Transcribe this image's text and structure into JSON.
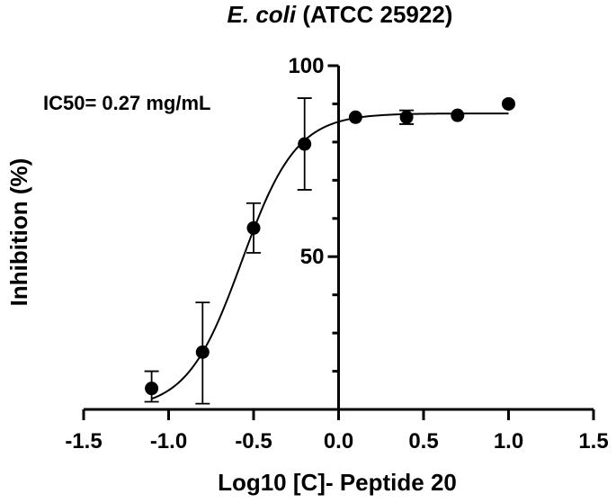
{
  "chart_data": {
    "type": "scatter",
    "title_italic": "E. coli",
    "title_rest": " (ATCC 25922)",
    "xlabel": "Log10 [C]- Peptide 20",
    "ylabel": "Inhibition (%)",
    "annotation": "IC50= 0.27 mg/mL",
    "xlim": [
      -1.5,
      1.5
    ],
    "ylim": [
      10,
      100
    ],
    "x_ticks": [
      "-1.5",
      "-1.0",
      "-0.5",
      "0.0",
      "0.5",
      "1.0",
      "1.5"
    ],
    "x_tick_values": [
      -1.5,
      -1.0,
      -0.5,
      0.0,
      0.5,
      1.0,
      1.5
    ],
    "y_ticks": [
      "50",
      "100"
    ],
    "y_tick_values": [
      50,
      100
    ],
    "y_minor_tick_values": [
      10,
      20,
      30,
      40,
      60,
      70,
      80,
      90
    ],
    "grid": false,
    "series": [
      {
        "x": [
          -1.1,
          -0.8,
          -0.5,
          -0.2,
          0.1,
          0.4,
          0.7,
          1.0
        ],
        "y": [
          15.5,
          25.0,
          57.5,
          79.5,
          86.5,
          86.5,
          87.0,
          90.0
        ],
        "err_low": [
          3.5,
          13.5,
          6.5,
          12.0,
          0,
          1.8,
          0,
          0
        ],
        "err_high": [
          4.5,
          13.0,
          6.5,
          12.0,
          0,
          1.8,
          0,
          0
        ]
      }
    ],
    "fit": {
      "type": "four-parameter logistic",
      "bottom": 10,
      "top": 87.5,
      "logIC50": -0.57,
      "hill": 2.7
    }
  }
}
